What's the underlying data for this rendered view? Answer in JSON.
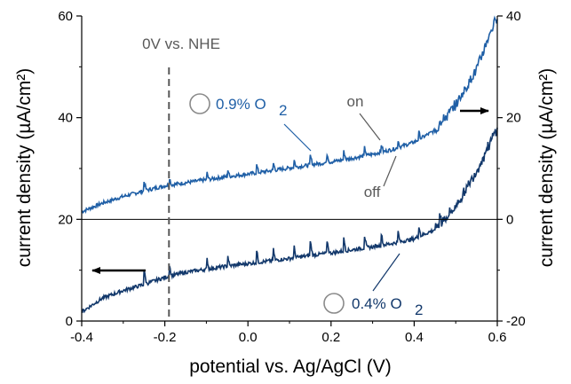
{
  "chart_data": {
    "type": "line",
    "xlabel": "potential vs. Ag/AgCl (V)",
    "ylabel_left": "current density (µA/cm²)",
    "ylabel_right": "current density (µA/cm²)",
    "xlim": [
      -0.4,
      0.6
    ],
    "ylim_left": [
      0,
      60
    ],
    "ylim_right": [
      -20,
      40
    ],
    "x_ticks": [
      "-0.4",
      "-0.2",
      "0.0",
      "0.2",
      "0.4",
      "0.6"
    ],
    "y_left_ticks": [
      "0",
      "20",
      "40",
      "60"
    ],
    "y_right_ticks": [
      "-20",
      "0",
      "20",
      "40"
    ],
    "zero_line_right": 0,
    "reference_line": {
      "x": -0.19,
      "label": "0V vs. NHE"
    },
    "annotations": {
      "on": "on",
      "off": "off"
    },
    "series": [
      {
        "name": "0.9% O₂",
        "label_main": "0.9% O",
        "label_sub": "2",
        "axis": "right",
        "color": "#1f5fa6",
        "points": [
          [
            -0.4,
            1.5
          ],
          [
            -0.35,
            3.2
          ],
          [
            -0.3,
            4.5
          ],
          [
            -0.25,
            5.6
          ],
          [
            -0.2,
            6.6
          ],
          [
            -0.15,
            7.2
          ],
          [
            -0.1,
            7.8
          ],
          [
            -0.05,
            8.4
          ],
          [
            0.0,
            8.9
          ],
          [
            0.05,
            9.5
          ],
          [
            0.1,
            10.1
          ],
          [
            0.15,
            10.7
          ],
          [
            0.2,
            11.3
          ],
          [
            0.25,
            12.0
          ],
          [
            0.3,
            12.8
          ],
          [
            0.35,
            13.8
          ],
          [
            0.4,
            15.2
          ],
          [
            0.45,
            17.5
          ],
          [
            0.5,
            22.5
          ],
          [
            0.55,
            29.5
          ],
          [
            0.58,
            36.0
          ],
          [
            0.6,
            40.0
          ]
        ]
      },
      {
        "name": "0.4% O₂",
        "label_main": "0.4% O",
        "label_sub": "2",
        "axis": "left",
        "color": "#12386b",
        "points": [
          [
            -0.4,
            1.8
          ],
          [
            -0.35,
            4.5
          ],
          [
            -0.3,
            6.0
          ],
          [
            -0.25,
            7.2
          ],
          [
            -0.2,
            8.6
          ],
          [
            -0.15,
            9.6
          ],
          [
            -0.1,
            10.2
          ],
          [
            -0.05,
            10.8
          ],
          [
            0.0,
            11.3
          ],
          [
            0.05,
            11.8
          ],
          [
            0.1,
            12.3
          ],
          [
            0.15,
            12.9
          ],
          [
            0.2,
            13.4
          ],
          [
            0.25,
            14.0
          ],
          [
            0.3,
            14.6
          ],
          [
            0.35,
            15.3
          ],
          [
            0.4,
            16.2
          ],
          [
            0.45,
            18.0
          ],
          [
            0.5,
            22.5
          ],
          [
            0.55,
            29.5
          ],
          [
            0.58,
            34.5
          ],
          [
            0.6,
            38.0
          ]
        ]
      }
    ],
    "arrows": [
      {
        "series": "0.9% O₂",
        "direction": "right"
      },
      {
        "series": "0.4% O₂",
        "direction": "left"
      }
    ]
  }
}
